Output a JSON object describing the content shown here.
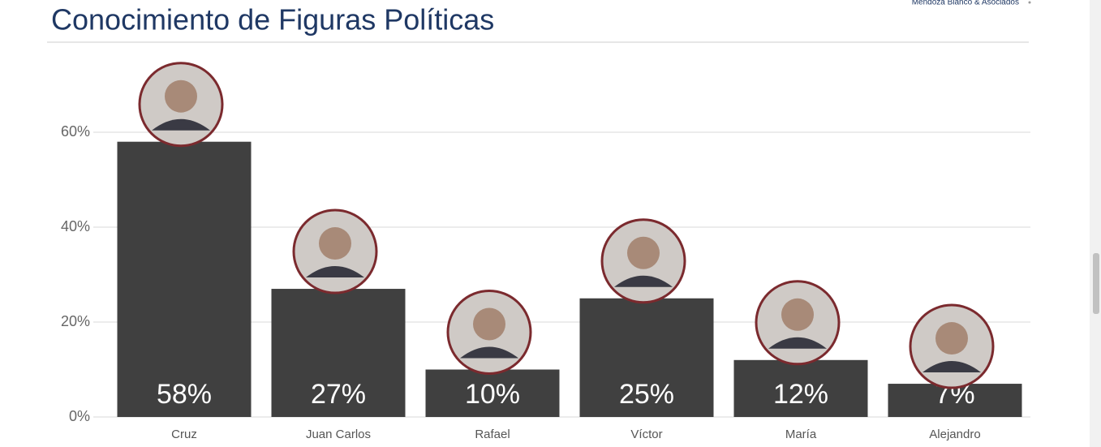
{
  "chart_data": {
    "type": "bar",
    "title": "Conocimiento de Figuras Políticas",
    "brand": "Mendoza Blanco & Asociados",
    "categories": [
      "Cruz",
      "Juan Carlos",
      "Rafael",
      "Víctor",
      "María",
      "Alejandro"
    ],
    "values": [
      58,
      27,
      10,
      25,
      12,
      7
    ],
    "value_labels": [
      "58%",
      "27%",
      "10%",
      "25%",
      "12%",
      "7%"
    ],
    "color": "#404040",
    "ylim": [
      0,
      60
    ],
    "yticks": [
      {
        "value": 0,
        "label": "0%"
      },
      {
        "value": 20,
        "label": "20%"
      },
      {
        "value": 40,
        "label": "40%"
      },
      {
        "value": 60,
        "label": "60%"
      }
    ],
    "grid": true
  }
}
